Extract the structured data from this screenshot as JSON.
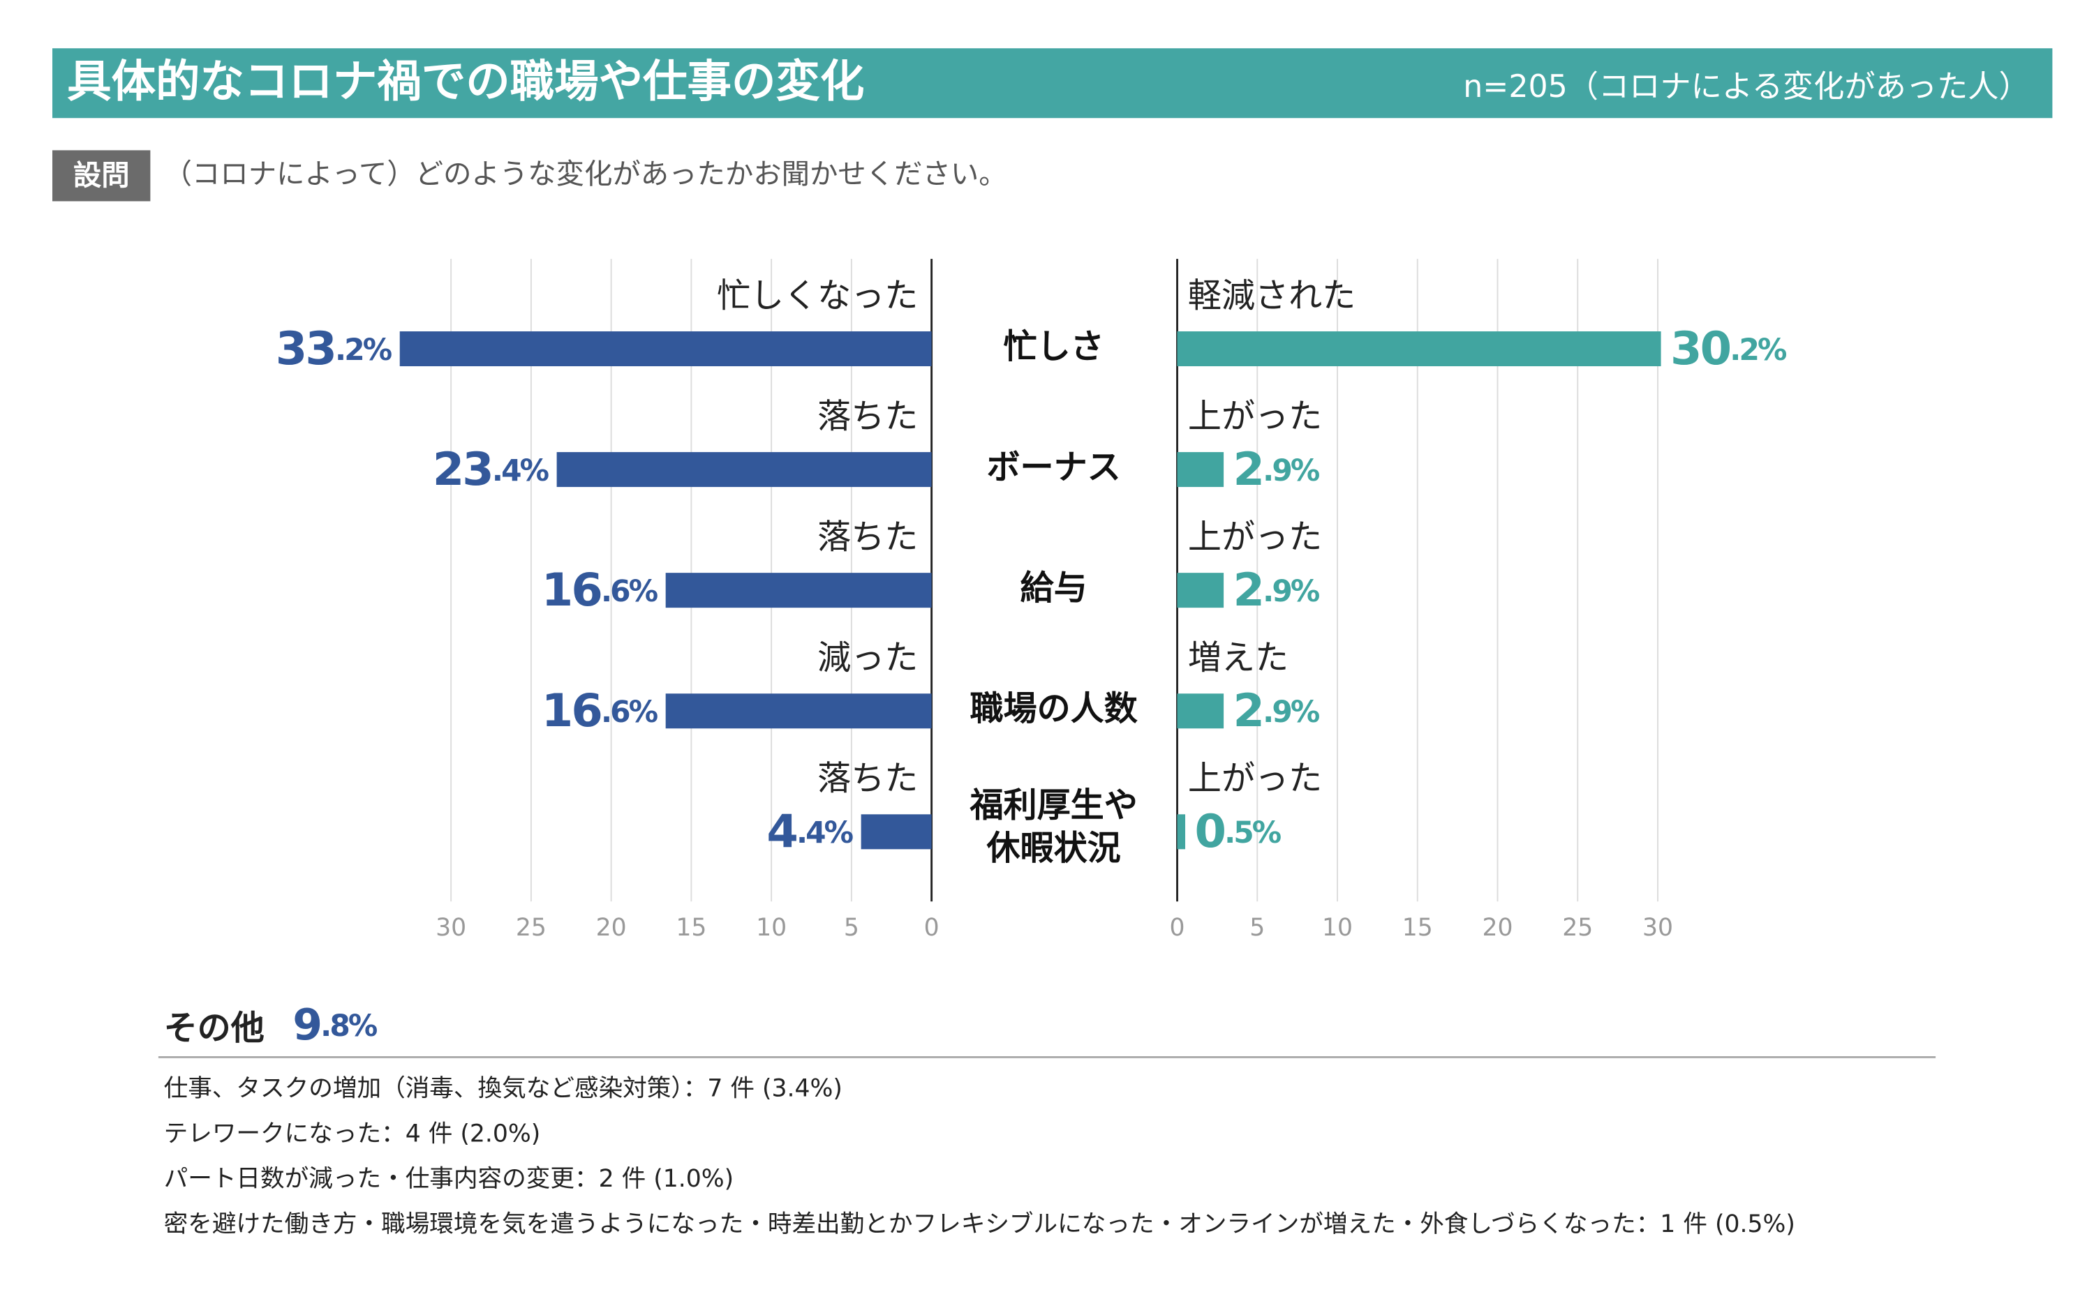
{
  "chart_data": {
    "type": "butterfly",
    "title": "具体的なコロナ禍での職場や仕事の変化",
    "subtitle": "n=205（コロナによる変化があった人）",
    "question_label": "設問",
    "question": "（コロナによって）どのような変化があったかお聞かせください。",
    "categories": [
      "忙しさ",
      "ボーナス",
      "給与",
      "職場の人数",
      "福利厚生や\n休暇状況"
    ],
    "series": [
      {
        "color": "#33589a",
        "side": "left",
        "values": [
          33.2,
          23.4,
          16.6,
          16.6,
          4.4
        ],
        "value_labels": [
          "33.2%",
          "23.4%",
          "16.6%",
          "16.6%",
          "4.4%"
        ],
        "bar_labels": [
          "忙しくなった",
          "落ちた",
          "落ちた",
          "減った",
          "落ちた"
        ]
      },
      {
        "color": "#41a5a0",
        "side": "right",
        "values": [
          30.2,
          2.9,
          2.9,
          2.9,
          0.5
        ],
        "value_labels": [
          "30.2%",
          "2.9%",
          "2.9%",
          "2.9%",
          "0.5%"
        ],
        "bar_labels": [
          "軽減された",
          "上がった",
          "上がった",
          "増えた",
          "上がった"
        ]
      }
    ],
    "xlim": [
      0,
      34
    ],
    "xticks": [
      0,
      5,
      10,
      15,
      20,
      25,
      30
    ],
    "grid": true,
    "other": {
      "label": "その他",
      "value_label": "9.8%",
      "items": [
        "仕事、タスクの増加（消毒、換気など感染対策）：7 件 (3.4%)",
        "テレワークになった：4 件 (2.0%)",
        "パート日数が減った・仕事内容の変更：2 件 (1.0%)",
        "密を避けた働き方・職場環境を気を遣うようになった・時差出勤とかフレキシブルになった・オンラインが増えた・外食しづらくなった：1 件 (0.5%)"
      ]
    }
  }
}
